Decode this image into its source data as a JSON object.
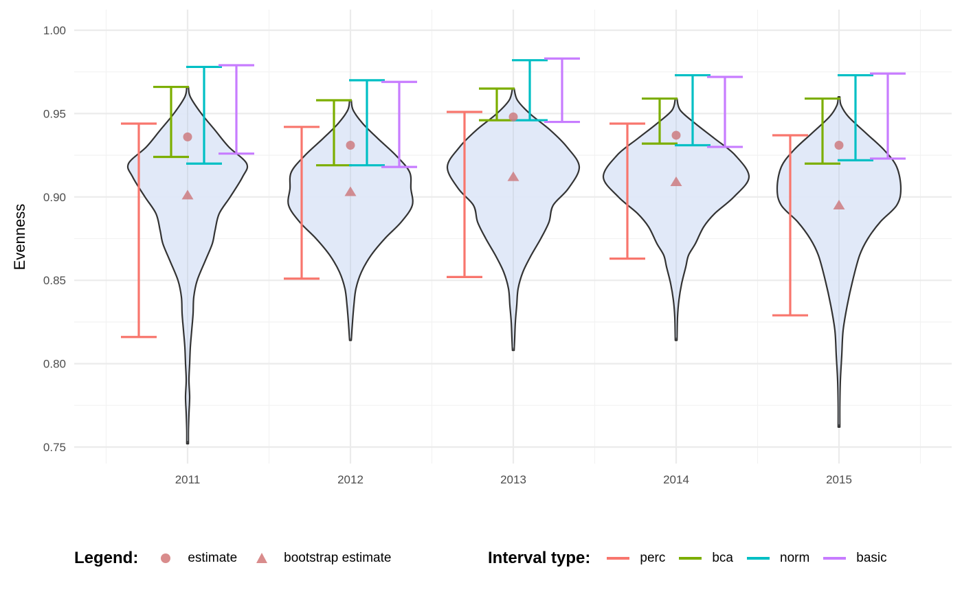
{
  "chart_data": {
    "type": "violin",
    "title": "",
    "xlabel": "",
    "ylabel": "Evenness",
    "ylim": [
      0.74,
      1.005
    ],
    "yticks": [
      0.75,
      0.8,
      0.85,
      0.9,
      0.95,
      1.0
    ],
    "ytick_labels": [
      "0.75",
      "0.80",
      "0.85",
      "0.90",
      "0.95",
      "1.00"
    ],
    "categories": [
      "2011",
      "2012",
      "2013",
      "2014",
      "2015"
    ],
    "grid": true,
    "legend_position": "bottom",
    "colors": {
      "perc": "#F8766D",
      "bca": "#7CAE00",
      "norm": "#00BFC4",
      "basic": "#C77CFF",
      "estimate": "#d98c8c",
      "violin_fill": "#dfe8f8",
      "violin_stroke": "#333333"
    },
    "estimate": [
      0.936,
      0.931,
      0.948,
      0.937,
      0.931
    ],
    "bootstrap_estimate": [
      0.901,
      0.903,
      0.912,
      0.909,
      0.895
    ],
    "intervals": {
      "perc": [
        [
          0.816,
          0.944
        ],
        [
          0.851,
          0.942
        ],
        [
          0.852,
          0.951
        ],
        [
          0.863,
          0.944
        ],
        [
          0.829,
          0.937
        ]
      ],
      "bca": [
        [
          0.924,
          0.966
        ],
        [
          0.919,
          0.958
        ],
        [
          0.946,
          0.965
        ],
        [
          0.932,
          0.959
        ],
        [
          0.92,
          0.959
        ]
      ],
      "norm": [
        [
          0.92,
          0.978
        ],
        [
          0.919,
          0.97
        ],
        [
          0.946,
          0.982
        ],
        [
          0.931,
          0.973
        ],
        [
          0.922,
          0.973
        ]
      ],
      "basic": [
        [
          0.926,
          0.979
        ],
        [
          0.918,
          0.969
        ],
        [
          0.945,
          0.983
        ],
        [
          0.93,
          0.972
        ],
        [
          0.923,
          0.974
        ]
      ]
    },
    "violins": [
      {
        "min": 0.752,
        "max": 0.966,
        "profile": [
          [
            0.966,
            0
          ],
          [
            0.96,
            4
          ],
          [
            0.95,
            20
          ],
          [
            0.94,
            40
          ],
          [
            0.93,
            60
          ],
          [
            0.92,
            86
          ],
          [
            0.912,
            80
          ],
          [
            0.9,
            62
          ],
          [
            0.89,
            46
          ],
          [
            0.88,
            40
          ],
          [
            0.872,
            36
          ],
          [
            0.862,
            26
          ],
          [
            0.85,
            14
          ],
          [
            0.84,
            9
          ],
          [
            0.83,
            8
          ],
          [
            0.82,
            6
          ],
          [
            0.81,
            4
          ],
          [
            0.8,
            3
          ],
          [
            0.79,
            2
          ],
          [
            0.78,
            3
          ],
          [
            0.77,
            2
          ],
          [
            0.76,
            1
          ],
          [
            0.752,
            0
          ]
        ]
      },
      {
        "min": 0.814,
        "max": 0.958,
        "profile": [
          [
            0.958,
            0
          ],
          [
            0.952,
            4
          ],
          [
            0.944,
            18
          ],
          [
            0.935,
            40
          ],
          [
            0.925,
            66
          ],
          [
            0.915,
            86
          ],
          [
            0.905,
            88
          ],
          [
            0.895,
            90
          ],
          [
            0.885,
            74
          ],
          [
            0.875,
            50
          ],
          [
            0.865,
            30
          ],
          [
            0.855,
            16
          ],
          [
            0.845,
            8
          ],
          [
            0.835,
            5
          ],
          [
            0.825,
            3
          ],
          [
            0.814,
            0
          ]
        ]
      },
      {
        "min": 0.808,
        "max": 0.965,
        "profile": [
          [
            0.965,
            0
          ],
          [
            0.958,
            6
          ],
          [
            0.95,
            24
          ],
          [
            0.94,
            54
          ],
          [
            0.93,
            78
          ],
          [
            0.918,
            96
          ],
          [
            0.905,
            80
          ],
          [
            0.895,
            58
          ],
          [
            0.885,
            52
          ],
          [
            0.875,
            40
          ],
          [
            0.865,
            26
          ],
          [
            0.855,
            14
          ],
          [
            0.845,
            7
          ],
          [
            0.835,
            5
          ],
          [
            0.825,
            3
          ],
          [
            0.815,
            2
          ],
          [
            0.808,
            0
          ]
        ]
      },
      {
        "min": 0.814,
        "max": 0.959,
        "profile": [
          [
            0.959,
            0
          ],
          [
            0.952,
            6
          ],
          [
            0.944,
            28
          ],
          [
            0.935,
            56
          ],
          [
            0.925,
            86
          ],
          [
            0.912,
            106
          ],
          [
            0.9,
            84
          ],
          [
            0.89,
            56
          ],
          [
            0.882,
            40
          ],
          [
            0.872,
            28
          ],
          [
            0.865,
            18
          ],
          [
            0.858,
            14
          ],
          [
            0.848,
            8
          ],
          [
            0.838,
            4
          ],
          [
            0.828,
            2
          ],
          [
            0.814,
            0
          ]
        ]
      },
      {
        "min": 0.762,
        "max": 0.96,
        "profile": [
          [
            0.96,
            0
          ],
          [
            0.955,
            3
          ],
          [
            0.948,
            14
          ],
          [
            0.938,
            40
          ],
          [
            0.928,
            66
          ],
          [
            0.918,
            84
          ],
          [
            0.905,
            90
          ],
          [
            0.895,
            84
          ],
          [
            0.885,
            60
          ],
          [
            0.875,
            42
          ],
          [
            0.865,
            30
          ],
          [
            0.85,
            20
          ],
          [
            0.835,
            12
          ],
          [
            0.82,
            6
          ],
          [
            0.805,
            4
          ],
          [
            0.79,
            2
          ],
          [
            0.775,
            1
          ],
          [
            0.762,
            0
          ]
        ]
      }
    ]
  },
  "legend": {
    "shape_title": "Legend:",
    "shape_items": [
      {
        "label": "estimate",
        "shape": "circle"
      },
      {
        "label": "bootstrap estimate",
        "shape": "triangle"
      }
    ],
    "interval_title": "Interval type:",
    "interval_items": [
      {
        "label": "perc",
        "color": "#F8766D"
      },
      {
        "label": "bca",
        "color": "#7CAE00"
      },
      {
        "label": "norm",
        "color": "#00BFC4"
      },
      {
        "label": "basic",
        "color": "#C77CFF"
      }
    ]
  }
}
